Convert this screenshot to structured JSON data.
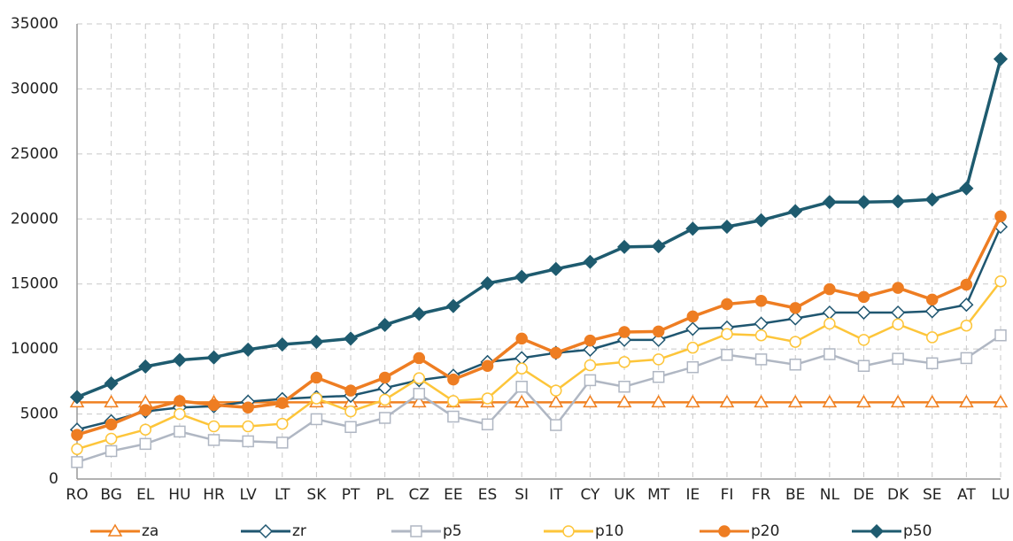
{
  "chart_data": {
    "type": "line",
    "categories": [
      "RO",
      "BG",
      "EL",
      "HU",
      "HR",
      "LV",
      "LT",
      "SK",
      "PT",
      "PL",
      "CZ",
      "EE",
      "ES",
      "SI",
      "IT",
      "CY",
      "UK",
      "MT",
      "IE",
      "FI",
      "FR",
      "BE",
      "NL",
      "DE",
      "DK",
      "SE",
      "AT",
      "LU"
    ],
    "ylim": [
      0,
      35000
    ],
    "yticks": [
      0,
      5000,
      10000,
      15000,
      20000,
      25000,
      30000,
      35000
    ],
    "grid": true,
    "legend": "bottom",
    "series": [
      {
        "name": "za",
        "color": "#f08020",
        "marker": "triangle",
        "filled": false,
        "values": [
          5900,
          5900,
          5900,
          5900,
          5900,
          5900,
          5900,
          5900,
          5900,
          5900,
          5900,
          5900,
          5900,
          5900,
          5900,
          5900,
          5900,
          5900,
          5900,
          5900,
          5900,
          5900,
          5900,
          5900,
          5900,
          5900,
          5900,
          5900
        ]
      },
      {
        "name": "zr",
        "color": "#1f5670",
        "marker": "diamond",
        "filled": false,
        "values": [
          3800,
          4450,
          5200,
          5500,
          5600,
          5950,
          6150,
          6300,
          6400,
          7000,
          7600,
          7950,
          9000,
          9300,
          9700,
          9950,
          10700,
          10700,
          11550,
          11650,
          11950,
          12350,
          12800,
          12800,
          12800,
          12900,
          13400,
          19400
        ]
      },
      {
        "name": "p5",
        "color": "#b0b7c3",
        "marker": "square",
        "filled": false,
        "values": [
          1300,
          2150,
          2700,
          3650,
          3000,
          2900,
          2800,
          4600,
          4000,
          4700,
          6550,
          4800,
          4200,
          7100,
          4150,
          7600,
          7100,
          7850,
          8600,
          9550,
          9200,
          8800,
          9600,
          8700,
          9250,
          8900,
          9300,
          11050
        ]
      },
      {
        "name": "p10",
        "color": "#fdc53a",
        "marker": "circle",
        "filled": false,
        "values": [
          2300,
          3100,
          3800,
          5000,
          4050,
          4050,
          4250,
          6200,
          5200,
          6100,
          7750,
          6000,
          6200,
          8500,
          6800,
          8750,
          9000,
          9200,
          10100,
          11150,
          11050,
          10550,
          11950,
          10700,
          11900,
          10900,
          11800,
          15200
        ]
      },
      {
        "name": "p20",
        "color": "#ee7d22",
        "marker": "circle",
        "filled": true,
        "values": [
          3400,
          4200,
          5300,
          6000,
          5700,
          5500,
          5850,
          7800,
          6800,
          7800,
          9300,
          7650,
          8700,
          10800,
          9700,
          10650,
          11300,
          11350,
          12500,
          13450,
          13700,
          13150,
          14600,
          14000,
          14700,
          13800,
          14950,
          20200
        ]
      },
      {
        "name": "p50",
        "color": "#1e5b6f",
        "marker": "diamond",
        "filled": true,
        "values": [
          6300,
          7350,
          8650,
          9150,
          9350,
          9950,
          10350,
          10550,
          10800,
          11850,
          12700,
          13300,
          15050,
          15550,
          16150,
          16700,
          17850,
          17900,
          19250,
          19400,
          19900,
          20600,
          21300,
          21300,
          21350,
          21500,
          22350,
          32300
        ]
      }
    ]
  }
}
